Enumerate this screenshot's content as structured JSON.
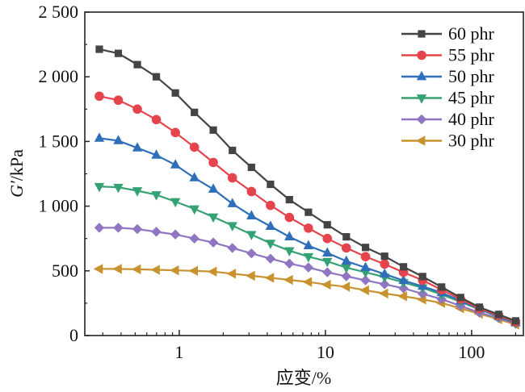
{
  "chart_data": {
    "type": "line",
    "title": "",
    "xlabel": "应变/%",
    "ylabel_main": "G′",
    "ylabel_unit": "/kPa",
    "xscale": "log",
    "xlim": [
      0.226,
      226
    ],
    "ylim": [
      0,
      2500
    ],
    "xticks": [
      {
        "value": 1,
        "label": "1"
      },
      {
        "value": 10,
        "label": "10"
      },
      {
        "value": 100,
        "label": "100"
      }
    ],
    "yticks": [
      {
        "value": 0,
        "label": "0"
      },
      {
        "value": 500,
        "label": "500"
      },
      {
        "value": 1000,
        "label": "1 000"
      },
      {
        "value": 1500,
        "label": "1 500"
      },
      {
        "value": 2000,
        "label": "2 000"
      },
      {
        "value": 2500,
        "label": "2 500"
      }
    ],
    "grid": false,
    "legend_position": "top-right",
    "x": [
      0.284,
      0.383,
      0.517,
      0.697,
      0.941,
      1.27,
      1.71,
      2.31,
      3.12,
      4.21,
      5.67,
      7.65,
      10.3,
      13.9,
      18.8,
      25.4,
      34.2,
      46.2,
      62.3,
      84.0,
      113,
      153,
      200
    ],
    "series": [
      {
        "name": "60 phr",
        "color": "#444444",
        "marker": "square",
        "values": [
          2213,
          2181,
          2094,
          2000,
          1875,
          1725,
          1588,
          1431,
          1300,
          1169,
          1050,
          953,
          856,
          763,
          681,
          613,
          531,
          456,
          375,
          294,
          219,
          163,
          113
        ]
      },
      {
        "name": "55 phr",
        "color": "#e5444c",
        "marker": "circle",
        "values": [
          1850,
          1819,
          1750,
          1669,
          1569,
          1456,
          1338,
          1219,
          1113,
          1006,
          913,
          830,
          750,
          677,
          610,
          552,
          489,
          427,
          354,
          281,
          208,
          156,
          104
        ]
      },
      {
        "name": "50 phr",
        "color": "#2f6fba",
        "marker": "triangle-up",
        "values": [
          1525,
          1506,
          1450,
          1394,
          1319,
          1219,
          1131,
          1019,
          925,
          844,
          763,
          694,
          638,
          575,
          525,
          475,
          425,
          381,
          331,
          269,
          206,
          150,
          98
        ]
      },
      {
        "name": "45 phr",
        "color": "#35a274",
        "marker": "triangle-down",
        "values": [
          1152,
          1146,
          1119,
          1088,
          1035,
          979,
          917,
          850,
          781,
          713,
          656,
          610,
          573,
          525,
          489,
          452,
          410,
          369,
          317,
          260,
          202,
          146,
          96
        ]
      },
      {
        "name": "40 phr",
        "color": "#8f75c2",
        "marker": "diamond",
        "values": [
          833,
          833,
          823,
          802,
          781,
          750,
          719,
          677,
          635,
          594,
          556,
          526,
          489,
          458,
          427,
          396,
          365,
          323,
          281,
          229,
          177,
          135,
          92
        ]
      },
      {
        "name": "30 phr",
        "color": "#c8932e",
        "marker": "triangle-left",
        "values": [
          515,
          515,
          512,
          508,
          504,
          500,
          494,
          478,
          462,
          446,
          430,
          414,
          393,
          377,
          350,
          325,
          304,
          279,
          252,
          210,
          168,
          126,
          85
        ]
      }
    ]
  }
}
